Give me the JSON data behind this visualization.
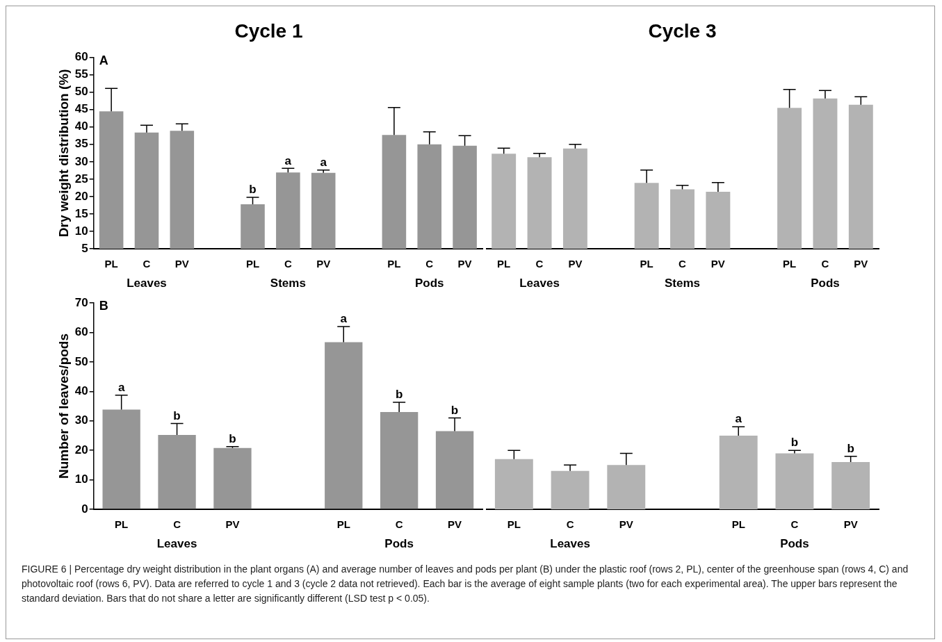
{
  "chart_data": [
    {
      "type": "bar",
      "title": "Cycle 1",
      "subtitle": "A",
      "ylabel": "Dry weight distribution (%)",
      "categories": [
        "PL",
        "C",
        "PV",
        null,
        "PL",
        "C",
        "PV",
        null,
        "PL",
        "C",
        "PV"
      ],
      "values": [
        44.5,
        38.4,
        38.9,
        null,
        17.8,
        26.9,
        26.8,
        null,
        37.7,
        35,
        34.6
      ],
      "color": "#969696",
      "errors": [
        [
          44.5,
          51.1
        ],
        [
          38.4,
          40.5
        ],
        [
          38.9,
          40.9
        ],
        null,
        [
          17.8,
          19.8
        ],
        [
          26.9,
          28.1
        ],
        [
          26.8,
          27.6
        ],
        null,
        [
          37.7,
          45.6
        ],
        [
          35,
          38.6
        ],
        [
          34.6,
          37.5
        ]
      ],
      "value_labels": [
        null,
        null,
        null,
        null,
        "b",
        "a",
        "a",
        null,
        null,
        null,
        null
      ],
      "ylim": [
        5,
        60
      ],
      "yticks": [
        5,
        10,
        15,
        20,
        25,
        30,
        35,
        40,
        45,
        50,
        55,
        60
      ],
      "annotations": [
        "Leaves",
        "Stems",
        "Pods"
      ]
    },
    {
      "type": "bar",
      "title": "Cycle 3",
      "categories": [
        "PL",
        "C",
        "PV",
        null,
        "PL",
        "C",
        "PV",
        null,
        "PL",
        "C",
        "PV"
      ],
      "values": [
        32.3,
        31.3,
        33.8,
        null,
        23.9,
        22.1,
        21.4,
        null,
        45.5,
        48.2,
        46.4
      ],
      "color": "#b3b3b3",
      "errors": [
        [
          32.3,
          33.9
        ],
        [
          31.3,
          32.4
        ],
        [
          33.8,
          35
        ],
        null,
        [
          23.9,
          27.6
        ],
        [
          22.1,
          23.2
        ],
        [
          21.4,
          24
        ],
        null,
        [
          45.5,
          50.8
        ],
        [
          48.2,
          50.5
        ],
        [
          46.4,
          48.7
        ]
      ],
      "ylim": [
        5,
        60
      ],
      "yticks": [
        5,
        10,
        15,
        20,
        25,
        30,
        35,
        40,
        45,
        50,
        55,
        60
      ],
      "tick_labels": "x",
      "annotations": [
        "Leaves",
        "Stems",
        "Pods"
      ]
    },
    {
      "type": "bar",
      "subtitle": "B",
      "ylabel": "Number of leaves/pods",
      "categories": [
        "PL",
        "C",
        "PV",
        null,
        "PL",
        "C",
        "PV"
      ],
      "values": [
        33.8,
        25.2,
        20.8,
        null,
        56.7,
        33,
        26.5
      ],
      "color": "#969696",
      "errors": [
        [
          33.8,
          38.7
        ],
        [
          25.2,
          29.1
        ],
        [
          20.8,
          21.3
        ],
        null,
        [
          56.7,
          62
        ],
        [
          33,
          36.3
        ],
        [
          26.5,
          31
        ]
      ],
      "value_labels": [
        "a",
        "b",
        "b",
        null,
        "a",
        "b",
        "b"
      ],
      "ylim": [
        0,
        70
      ],
      "yticks": [
        0,
        10,
        20,
        30,
        40,
        50,
        60,
        70
      ],
      "annotations": [
        "Leaves",
        "Pods"
      ]
    },
    {
      "type": "bar",
      "categories": [
        "PL",
        "C",
        "PV",
        null,
        "PL",
        "C",
        "PV"
      ],
      "values": [
        17,
        13,
        15,
        null,
        25,
        19,
        16
      ],
      "color": "#b3b3b3",
      "errors": [
        [
          17,
          20
        ],
        [
          13,
          15
        ],
        [
          15,
          19
        ],
        null,
        [
          25,
          28
        ],
        [
          19,
          20
        ],
        [
          16,
          18
        ]
      ],
      "value_labels": [
        null,
        null,
        null,
        null,
        "a",
        "b",
        "b"
      ],
      "ylim": [
        0,
        70
      ],
      "yticks": [
        0,
        10,
        20,
        30,
        40,
        50,
        60,
        70
      ],
      "tick_labels": "x",
      "annotations": [
        "Leaves",
        "Pods"
      ]
    },
    {
      "type": "other",
      "annotations": [
        "FIGURE 6 | Percentage dry weight distribution in the plant organs (A) and average number of leaves and pods per plant (B) under the plastic roof (rows 2, PL), center of the greenhouse span (rows 4, C) and photovoltaic roof (rows 6, PV). Data are referred to cycle 1 and 3 (cycle 2 data not retrieved). Each bar is the average of eight sample plants (two for each experimental area). The upper bars represent the standard deviation. Bars that do not share a letter are significantly different (LSD test p < 0.05)."
      ]
    }
  ]
}
